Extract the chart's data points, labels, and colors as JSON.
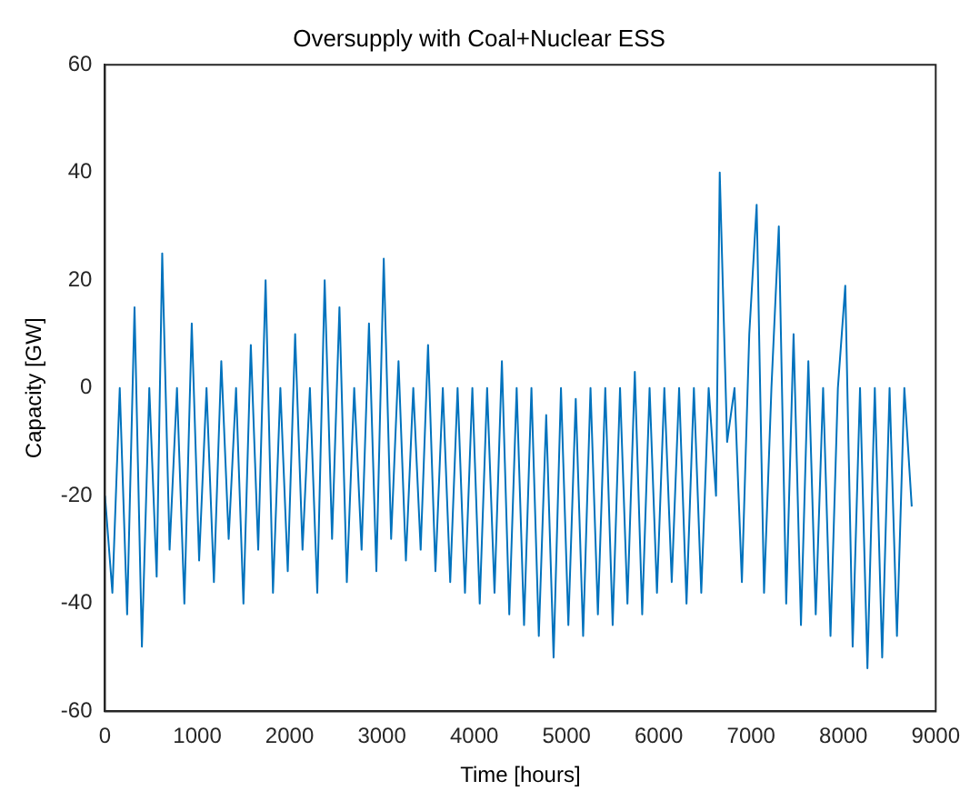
{
  "chart_data": {
    "type": "line",
    "title": "Oversupply with Coal+Nuclear ESS",
    "xlabel": "Time [hours]",
    "ylabel": "Capacity [GW]",
    "x": [
      0,
      80,
      160,
      240,
      320,
      400,
      480,
      560,
      620,
      700,
      780,
      860,
      940,
      1020,
      1100,
      1180,
      1260,
      1340,
      1420,
      1500,
      1580,
      1660,
      1740,
      1820,
      1900,
      1980,
      2060,
      2140,
      2220,
      2300,
      2380,
      2460,
      2540,
      2620,
      2700,
      2780,
      2860,
      2940,
      3020,
      3100,
      3180,
      3260,
      3340,
      3420,
      3500,
      3580,
      3660,
      3740,
      3820,
      3900,
      3980,
      4060,
      4140,
      4220,
      4300,
      4380,
      4460,
      4540,
      4620,
      4700,
      4780,
      4860,
      4940,
      5020,
      5100,
      5180,
      5260,
      5340,
      5420,
      5500,
      5580,
      5660,
      5740,
      5820,
      5900,
      5980,
      6060,
      6140,
      6220,
      6300,
      6380,
      6460,
      6540,
      6620,
      6660,
      6740,
      6820,
      6900,
      6980,
      7060,
      7140,
      7220,
      7300,
      7380,
      7460,
      7540,
      7620,
      7700,
      7780,
      7860,
      7940,
      8020,
      8100,
      8180,
      8260,
      8340,
      8420,
      8500,
      8580,
      8660,
      8740
    ],
    "series": [
      {
        "color": "#0072bd",
        "values": [
          -20,
          -38,
          0,
          -42,
          15,
          -48,
          0,
          -35,
          25,
          -30,
          0,
          -40,
          12,
          -32,
          0,
          -36,
          5,
          -28,
          0,
          -40,
          8,
          -30,
          20,
          -38,
          0,
          -34,
          10,
          -30,
          0,
          -38,
          20,
          -28,
          15,
          -36,
          0,
          -30,
          12,
          -34,
          24,
          -28,
          5,
          -32,
          0,
          -30,
          8,
          -34,
          0,
          -36,
          0,
          -38,
          0,
          -40,
          0,
          -38,
          5,
          -42,
          0,
          -44,
          0,
          -46,
          -5,
          -50,
          0,
          -44,
          -2,
          -46,
          0,
          -42,
          0,
          -44,
          0,
          -40,
          3,
          -42,
          0,
          -38,
          0,
          -36,
          0,
          -40,
          0,
          -38,
          0,
          -20,
          40,
          -10,
          0,
          -36,
          10,
          34,
          -38,
          0,
          30,
          -40,
          10,
          -44,
          5,
          -42,
          0,
          -46,
          0,
          19,
          -48,
          0,
          -52,
          0,
          -50,
          0,
          -46,
          0,
          -22
        ]
      }
    ],
    "xlim": [
      0,
      9000
    ],
    "xticks": [
      0,
      1000,
      2000,
      3000,
      4000,
      5000,
      6000,
      7000,
      8000,
      9000
    ],
    "ylim": [
      -60,
      60
    ],
    "yticks": [
      -60,
      -40,
      -20,
      0,
      20,
      40,
      60
    ],
    "grid": false,
    "legend": false,
    "marker": "none",
    "line_style": "solid"
  }
}
